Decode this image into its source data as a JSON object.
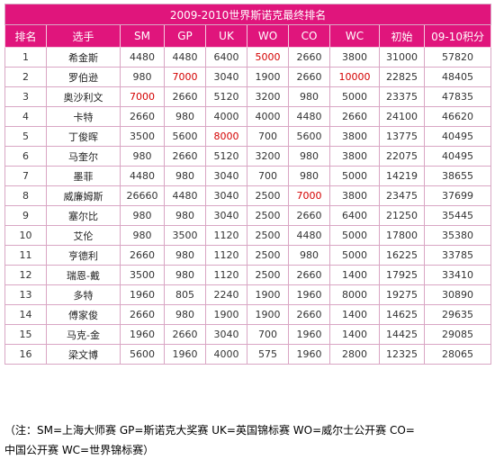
{
  "title": "2009-2010世界斯诺克最终排名",
  "headers": [
    "排名",
    "选手",
    "SM",
    "GP",
    "UK",
    "WO",
    "CO",
    "WC",
    "初始",
    "09-10积分"
  ],
  "colors": {
    "header_bg": "#e0157c",
    "highlight": "#d40000"
  },
  "rows": [
    {
      "cells": [
        "1",
        "希金斯",
        "4480",
        "4480",
        "6400",
        "5000",
        "2660",
        "3800",
        "31000",
        "57820"
      ],
      "red": [
        5
      ]
    },
    {
      "cells": [
        "2",
        "罗伯逊",
        "980",
        "7000",
        "3040",
        "1900",
        "2660",
        "10000",
        "22825",
        "48405"
      ],
      "red": [
        3,
        7
      ]
    },
    {
      "cells": [
        "3",
        "奥沙利文",
        "7000",
        "2660",
        "5120",
        "3200",
        "980",
        "5000",
        "23375",
        "47835"
      ],
      "red": [
        2
      ]
    },
    {
      "cells": [
        "4",
        "卡特",
        "2660",
        "980",
        "4000",
        "4000",
        "4480",
        "2660",
        "24100",
        "46620"
      ],
      "red": []
    },
    {
      "cells": [
        "5",
        "丁俊晖",
        "3500",
        "5600",
        "8000",
        "700",
        "5600",
        "3800",
        "13775",
        "40495"
      ],
      "red": [
        4
      ]
    },
    {
      "cells": [
        "6",
        "马奎尔",
        "980",
        "2660",
        "5120",
        "3200",
        "980",
        "3800",
        "22075",
        "40495"
      ],
      "red": []
    },
    {
      "cells": [
        "7",
        "墨菲",
        "4480",
        "980",
        "3040",
        "700",
        "980",
        "5000",
        "14219",
        "38655"
      ],
      "red": []
    },
    {
      "cells": [
        "8",
        "威廉姆斯",
        "26660",
        "4480",
        "3040",
        "2500",
        "7000",
        "3800",
        "23475",
        "37699"
      ],
      "red": [
        6
      ]
    },
    {
      "cells": [
        "9",
        "塞尔比",
        "980",
        "980",
        "3040",
        "2500",
        "2660",
        "6400",
        "21250",
        "35445"
      ],
      "red": []
    },
    {
      "cells": [
        "10",
        "艾伦",
        "980",
        "3500",
        "1120",
        "2500",
        "4480",
        "5000",
        "17800",
        "35380"
      ],
      "red": []
    },
    {
      "cells": [
        "11",
        "亨德利",
        "2660",
        "980",
        "1120",
        "2500",
        "980",
        "5000",
        "16225",
        "33785"
      ],
      "red": []
    },
    {
      "cells": [
        "12",
        "瑞恩-戴",
        "3500",
        "980",
        "1120",
        "2500",
        "2660",
        "1400",
        "17925",
        "33410"
      ],
      "red": []
    },
    {
      "cells": [
        "13",
        "多特",
        "1960",
        "805",
        "2240",
        "1900",
        "1960",
        "8000",
        "19275",
        "30890"
      ],
      "red": []
    },
    {
      "cells": [
        "14",
        "傅家俊",
        "2660",
        "980",
        "1900",
        "1900",
        "2660",
        "1400",
        "14625",
        "29635"
      ],
      "red": []
    },
    {
      "cells": [
        "15",
        "马克-金",
        "1960",
        "2660",
        "3040",
        "700",
        "1960",
        "1400",
        "14425",
        "29085"
      ],
      "red": []
    },
    {
      "cells": [
        "16",
        "梁文博",
        "5600",
        "1960",
        "4000",
        "575",
        "1960",
        "2800",
        "12325",
        "28065"
      ],
      "red": []
    }
  ],
  "note_line1": "（注：SM=上海大师赛 GP=斯诺克大奖赛 UK=英国锦标赛 WO=威尔士公开赛 CO=",
  "note_line2": "中国公开赛 WC=世界锦标赛）"
}
